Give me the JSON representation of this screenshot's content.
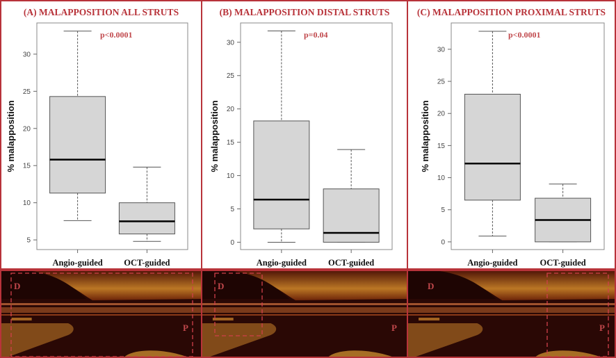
{
  "colors": {
    "accent": "#b8333a",
    "box_fill": "#d6d6d6",
    "median": "#000000",
    "oct_bg": "#2a0805"
  },
  "chart_data": [
    {
      "type": "box",
      "title": "(A) MALAPPOSITION ALL STRUTS",
      "annotation": "p<0.0001",
      "ylabel": "% malapposition",
      "xlabel": "",
      "categories": [
        "Angio-guided",
        "OCT-guided"
      ],
      "ylim": [
        3.7,
        34.2
      ],
      "yticks": [
        5,
        10,
        15,
        20,
        25,
        30
      ],
      "grid": false,
      "series": [
        {
          "name": "Angio-guided",
          "whisker_low": 7.6,
          "q1": 11.3,
          "median": 15.8,
          "q3": 24.3,
          "whisker_high": 33.1
        },
        {
          "name": "OCT-guided",
          "whisker_low": 4.8,
          "q1": 5.8,
          "median": 7.5,
          "q3": 10.0,
          "whisker_high": 14.8
        }
      ]
    },
    {
      "type": "box",
      "title": "(B) MALAPPOSITION DISTAL STRUTS",
      "annotation": "p=0.04",
      "ylabel": "% malapposition",
      "xlabel": "",
      "categories": [
        "Angio-guided",
        "OCT-guided"
      ],
      "ylim": [
        -1.1,
        32.9
      ],
      "yticks": [
        0,
        5,
        10,
        15,
        20,
        25,
        30
      ],
      "grid": false,
      "series": [
        {
          "name": "Angio-guided",
          "whisker_low": 0.0,
          "q1": 2.0,
          "median": 6.4,
          "q3": 18.2,
          "whisker_high": 31.7
        },
        {
          "name": "OCT-guided",
          "whisker_low": 0.0,
          "q1": 0.0,
          "median": 1.4,
          "q3": 8.0,
          "whisker_high": 13.9
        }
      ]
    },
    {
      "type": "box",
      "title": "(C) MALAPPOSITION PROXIMAL STRUTS",
      "annotation": "p<0.0001",
      "ylabel": "% malapposition",
      "xlabel": "",
      "categories": [
        "Angio-guided",
        "OCT-guided"
      ],
      "ylim": [
        -1.2,
        34.1
      ],
      "yticks": [
        0,
        5,
        10,
        15,
        20,
        25,
        30
      ],
      "grid": false,
      "series": [
        {
          "name": "Angio-guided",
          "whisker_low": 0.9,
          "q1": 6.5,
          "median": 12.2,
          "q3": 23.0,
          "whisker_high": 32.8
        },
        {
          "name": "OCT-guided",
          "whisker_low": 0.0,
          "q1": 0.0,
          "median": 3.4,
          "q3": 6.8,
          "whisker_high": 9.0
        }
      ]
    }
  ],
  "oct_images": [
    {
      "distal_label": "D",
      "proximal_label": "P",
      "highlight": "all"
    },
    {
      "distal_label": "D",
      "proximal_label": "P",
      "highlight": "distal"
    },
    {
      "distal_label": "D",
      "proximal_label": "P",
      "highlight": "proximal"
    }
  ]
}
